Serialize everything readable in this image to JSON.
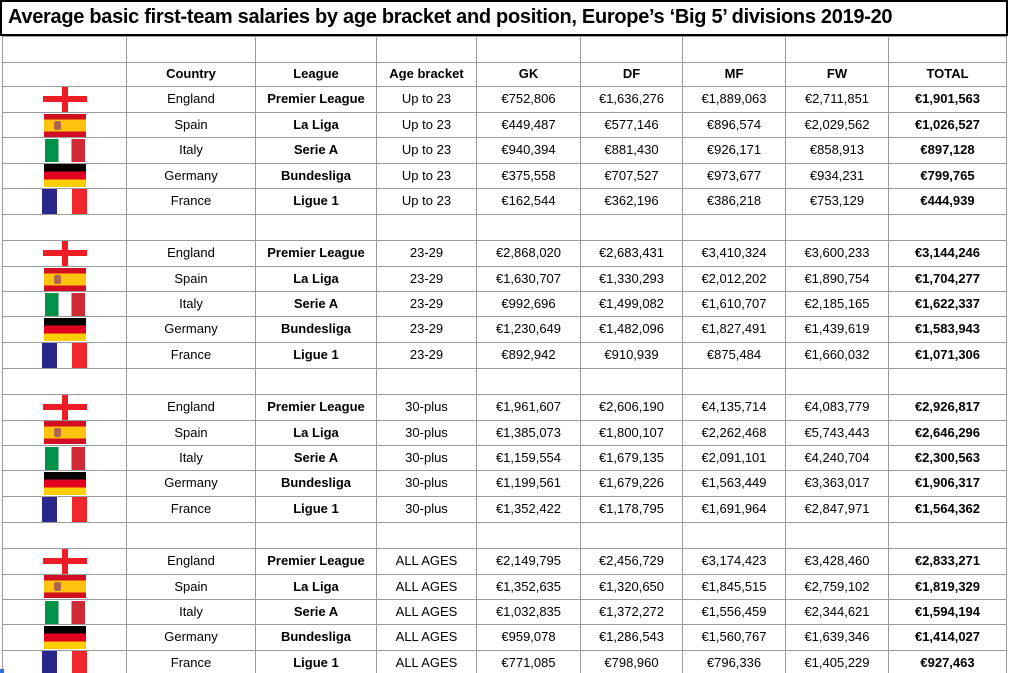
{
  "title": "Average basic first-team salaries by age bracket and position, Europe’s ‘Big 5’ divisions 2019-20",
  "chart_data": {
    "type": "table",
    "title": "Average basic first-team salaries by age bracket and position, Europe’s ‘Big 5’ divisions 2019-20",
    "columns": [
      "Country",
      "League",
      "Age bracket",
      "GK",
      "DF",
      "MF",
      "FW",
      "TOTAL"
    ],
    "groups": [
      {
        "age_bracket": "Up to 23",
        "rows": [
          {
            "flag": "england",
            "country": "England",
            "league": "Premier League",
            "gk": "€752,806",
            "df": "€1,636,276",
            "mf": "€1,889,063",
            "fw": "€2,711,851",
            "total": "€1,901,563"
          },
          {
            "flag": "spain",
            "country": "Spain",
            "league": "La Liga",
            "gk": "€449,487",
            "df": "€577,146",
            "mf": "€896,574",
            "fw": "€2,029,562",
            "total": "€1,026,527"
          },
          {
            "flag": "italy",
            "country": "Italy",
            "league": "Serie A",
            "gk": "€940,394",
            "df": "€881,430",
            "mf": "€926,171",
            "fw": "€858,913",
            "total": "€897,128"
          },
          {
            "flag": "germany",
            "country": "Germany",
            "league": "Bundesliga",
            "gk": "€375,558",
            "df": "€707,527",
            "mf": "€973,677",
            "fw": "€934,231",
            "total": "€799,765"
          },
          {
            "flag": "france",
            "country": "France",
            "league": "Ligue 1",
            "gk": "€162,544",
            "df": "€362,196",
            "mf": "€386,218",
            "fw": "€753,129",
            "total": "€444,939"
          }
        ]
      },
      {
        "age_bracket": "23-29",
        "rows": [
          {
            "flag": "england",
            "country": "England",
            "league": "Premier League",
            "gk": "€2,868,020",
            "df": "€2,683,431",
            "mf": "€3,410,324",
            "fw": "€3,600,233",
            "total": "€3,144,246"
          },
          {
            "flag": "spain",
            "country": "Spain",
            "league": "La Liga",
            "gk": "€1,630,707",
            "df": "€1,330,293",
            "mf": "€2,012,202",
            "fw": "€1,890,754",
            "total": "€1,704,277"
          },
          {
            "flag": "italy",
            "country": "Italy",
            "league": "Serie A",
            "gk": "€992,696",
            "df": "€1,499,082",
            "mf": "€1,610,707",
            "fw": "€2,185,165",
            "total": "€1,622,337"
          },
          {
            "flag": "germany",
            "country": "Germany",
            "league": "Bundesliga",
            "gk": "€1,230,649",
            "df": "€1,482,096",
            "mf": "€1,827,491",
            "fw": "€1,439,619",
            "total": "€1,583,943"
          },
          {
            "flag": "france",
            "country": "France",
            "league": "Ligue 1",
            "gk": "€892,942",
            "df": "€910,939",
            "mf": "€875,484",
            "fw": "€1,660,032",
            "total": "€1,071,306"
          }
        ]
      },
      {
        "age_bracket": "30-plus",
        "rows": [
          {
            "flag": "england",
            "country": "England",
            "league": "Premier League",
            "gk": "€1,961,607",
            "df": "€2,606,190",
            "mf": "€4,135,714",
            "fw": "€4,083,779",
            "total": "€2,926,817"
          },
          {
            "flag": "spain",
            "country": "Spain",
            "league": "La Liga",
            "gk": "€1,385,073",
            "df": "€1,800,107",
            "mf": "€2,262,468",
            "fw": "€5,743,443",
            "total": "€2,646,296"
          },
          {
            "flag": "italy",
            "country": "Italy",
            "league": "Serie A",
            "gk": "€1,159,554",
            "df": "€1,679,135",
            "mf": "€2,091,101",
            "fw": "€4,240,704",
            "total": "€2,300,563"
          },
          {
            "flag": "germany",
            "country": "Germany",
            "league": "Bundesliga",
            "gk": "€1,199,561",
            "df": "€1,679,226",
            "mf": "€1,563,449",
            "fw": "€3,363,017",
            "total": "€1,906,317"
          },
          {
            "flag": "france",
            "country": "France",
            "league": "Ligue 1",
            "gk": "€1,352,422",
            "df": "€1,178,795",
            "mf": "€1,691,964",
            "fw": "€2,847,971",
            "total": "€1,564,362"
          }
        ]
      },
      {
        "age_bracket": "ALL AGES",
        "rows": [
          {
            "flag": "england",
            "country": "England",
            "league": "Premier League",
            "gk": "€2,149,795",
            "df": "€2,456,729",
            "mf": "€3,174,423",
            "fw": "€3,428,460",
            "total": "€2,833,271"
          },
          {
            "flag": "spain",
            "country": "Spain",
            "league": "La Liga",
            "gk": "€1,352,635",
            "df": "€1,320,650",
            "mf": "€1,845,515",
            "fw": "€2,759,102",
            "total": "€1,819,329"
          },
          {
            "flag": "italy",
            "country": "Italy",
            "league": "Serie A",
            "gk": "€1,032,835",
            "df": "€1,372,272",
            "mf": "€1,556,459",
            "fw": "€2,344,621",
            "total": "€1,594,194"
          },
          {
            "flag": "germany",
            "country": "Germany",
            "league": "Bundesliga",
            "gk": "€959,078",
            "df": "€1,286,543",
            "mf": "€1,560,767",
            "fw": "€1,639,346",
            "total": "€1,414,027"
          },
          {
            "flag": "france",
            "country": "France",
            "league": "Ligue 1",
            "gk": "€771,085",
            "df": "€798,960",
            "mf": "€796,336",
            "fw": "€1,405,229",
            "total": "€927,463"
          }
        ]
      }
    ]
  },
  "colors": {
    "grid_line": "#9b9b9b",
    "title_border": "#000000",
    "england_red": "#ee1c25",
    "spain_red": "#d20f22",
    "spain_yellow": "#ffc20e",
    "spain_emblem": "#a05a52",
    "italy_green": "#009246",
    "italy_white": "#ffffff",
    "italy_red": "#ce2b37",
    "germany_black": "#000000",
    "germany_red": "#e1001f",
    "germany_gold": "#ffce00",
    "france_blue": "#29268c",
    "france_white": "#ffffff",
    "france_red": "#f0282d",
    "selection_handle_blue": "#2f6fe4"
  }
}
